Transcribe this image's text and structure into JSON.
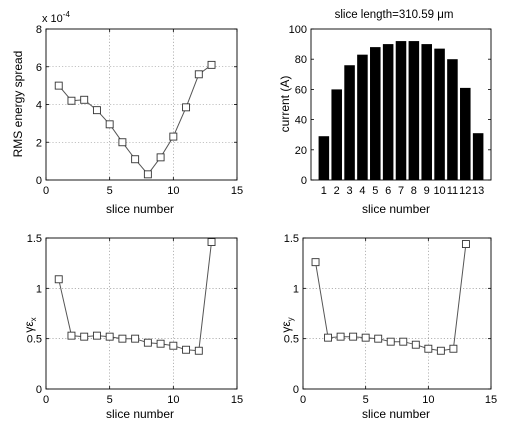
{
  "chart_data": [
    {
      "id": "energy",
      "type": "line",
      "title": "",
      "xlabel": "slice number",
      "ylabel": "RMS energy spread",
      "multiplier": "x 10",
      "exponent": "-4",
      "xlim": [
        0,
        15
      ],
      "ylim": [
        0,
        8
      ],
      "xticks": [
        "0",
        "5",
        "10",
        "15"
      ],
      "yticks": [
        "0",
        "2",
        "4",
        "6",
        "8"
      ],
      "grid": true,
      "marker": "square",
      "series": [
        {
          "x": [
            1,
            2,
            3,
            4,
            5,
            6,
            7,
            8,
            9,
            10,
            11,
            12,
            13
          ],
          "y": [
            5.0,
            4.2,
            4.25,
            3.7,
            2.95,
            2.0,
            1.1,
            0.3,
            1.2,
            2.3,
            3.85,
            5.6,
            6.1
          ]
        }
      ]
    },
    {
      "id": "current",
      "type": "bar",
      "title": "slice length=310.59 μm",
      "xlabel": "slice number",
      "ylabel": "current (A)",
      "ylim": [
        0,
        100
      ],
      "yticks": [
        "0",
        "20",
        "40",
        "60",
        "80",
        "100"
      ],
      "grid": false,
      "categories": [
        "1",
        "2",
        "3",
        "4",
        "5",
        "6",
        "7",
        "8",
        "9",
        "10",
        "11",
        "12",
        "13"
      ],
      "values": [
        29,
        60,
        76,
        83,
        88,
        90,
        92,
        92,
        90,
        87,
        80,
        61,
        31
      ]
    },
    {
      "id": "emit_x",
      "type": "line",
      "title": "",
      "xlabel": "slice number",
      "ylabel": "γε",
      "ylabel_sub": "x",
      "xlim": [
        0,
        15
      ],
      "ylim": [
        0,
        1.5
      ],
      "xticks": [
        "0",
        "5",
        "10",
        "15"
      ],
      "yticks": [
        "0",
        "0.5",
        "1",
        "1.5"
      ],
      "grid": true,
      "marker": "square",
      "series": [
        {
          "x": [
            1,
            2,
            3,
            4,
            5,
            6,
            7,
            8,
            9,
            10,
            11,
            12,
            13
          ],
          "y": [
            1.09,
            0.53,
            0.52,
            0.53,
            0.52,
            0.5,
            0.5,
            0.46,
            0.45,
            0.43,
            0.39,
            0.38,
            1.46
          ]
        }
      ]
    },
    {
      "id": "emit_y",
      "type": "line",
      "title": "",
      "xlabel": "slice number",
      "ylabel": "γε",
      "ylabel_sub": "y",
      "xlim": [
        0,
        15
      ],
      "ylim": [
        0,
        1.5
      ],
      "xticks": [
        "0",
        "5",
        "10",
        "15"
      ],
      "yticks": [
        "0",
        "0.5",
        "1",
        "1.5"
      ],
      "grid": true,
      "marker": "square",
      "series": [
        {
          "x": [
            1,
            2,
            3,
            4,
            5,
            6,
            7,
            8,
            9,
            10,
            11,
            12,
            13
          ],
          "y": [
            1.26,
            0.51,
            0.52,
            0.52,
            0.51,
            0.5,
            0.47,
            0.47,
            0.44,
            0.4,
            0.38,
            0.4,
            1.44
          ]
        }
      ]
    }
  ]
}
